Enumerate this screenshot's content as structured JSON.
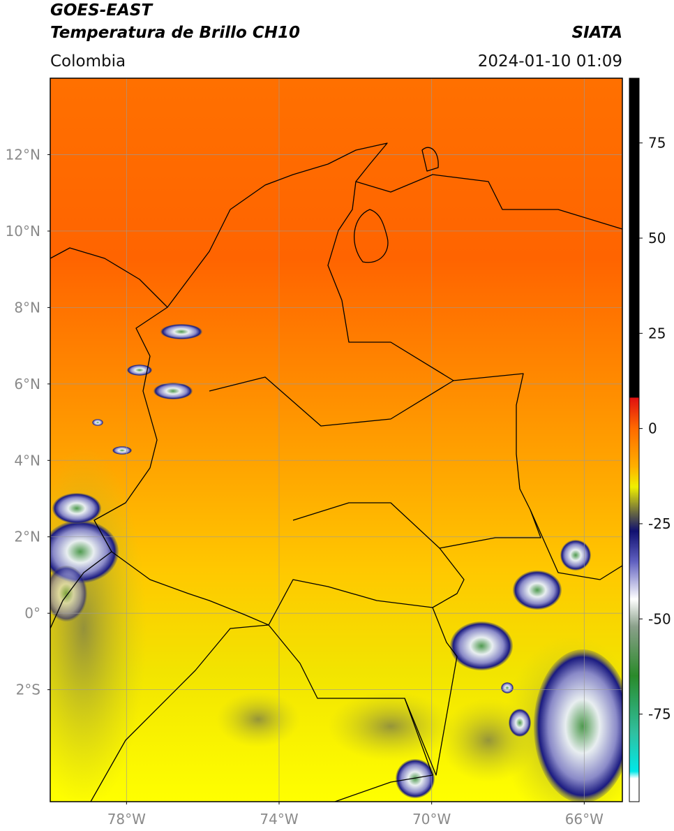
{
  "header": {
    "title": "GOES-EAST",
    "subtitle": "Temperatura de Brillo CH10",
    "region": "Colombia",
    "source": "SIATA",
    "datetime": "2024-01-10 01:09"
  },
  "map": {
    "lon_lim": [
      -80,
      -65
    ],
    "lat_lim": [
      -4.93,
      14
    ],
    "lon_ticks": [
      {
        "value": -78,
        "label": "78°W"
      },
      {
        "value": -74,
        "label": "74°W"
      },
      {
        "value": -70,
        "label": "70°W"
      },
      {
        "value": -66,
        "label": "66°W"
      }
    ],
    "lat_ticks": [
      {
        "value": 12,
        "label": "12°N"
      },
      {
        "value": 10,
        "label": "10°N"
      },
      {
        "value": 8,
        "label": "8°N"
      },
      {
        "value": 6,
        "label": "6°N"
      },
      {
        "value": 4,
        "label": "4°N"
      },
      {
        "value": 2,
        "label": "2°N"
      },
      {
        "value": 0,
        "label": "0°"
      },
      {
        "value": -2,
        "label": "2°S"
      }
    ]
  },
  "colorbar": {
    "lim": [
      -98,
      92
    ],
    "ticks": [
      75,
      50,
      25,
      0,
      -25,
      -50,
      -75
    ]
  }
}
